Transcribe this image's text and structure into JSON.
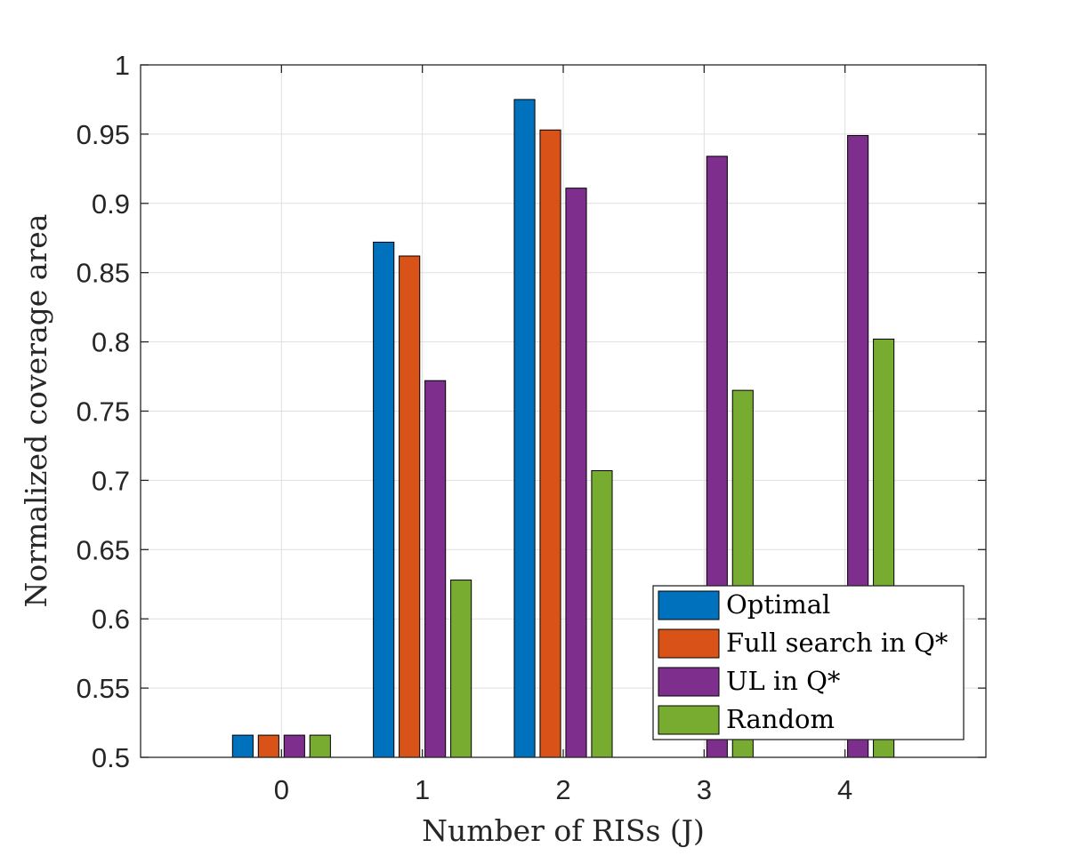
{
  "chart_data": {
    "type": "bar",
    "title": "",
    "xlabel": "Number of RISs (J)",
    "ylabel": "Normalized coverage area",
    "categories": [
      "0",
      "1",
      "2",
      "3",
      "4"
    ],
    "xlim": [
      -1,
      5
    ],
    "ylim": [
      0.5,
      1
    ],
    "yticks": [
      "0.5",
      "0.55",
      "0.6",
      "0.65",
      "0.7",
      "0.75",
      "0.8",
      "0.85",
      "0.9",
      "0.95",
      "1"
    ],
    "grid": true,
    "legend_position": "bottom-right",
    "series": [
      {
        "name": "Optimal",
        "color": "#0072BD",
        "values": [
          0.516,
          0.872,
          0.975,
          null,
          null
        ]
      },
      {
        "name": "Full search in Q*",
        "color": "#D95319",
        "values": [
          0.516,
          0.862,
          0.953,
          null,
          null
        ]
      },
      {
        "name": "UL in Q*",
        "color": "#7E2F8E",
        "values": [
          0.516,
          0.772,
          0.911,
          0.934,
          0.949
        ]
      },
      {
        "name": "Random",
        "color": "#77AC30",
        "values": [
          0.516,
          0.628,
          0.707,
          0.765,
          0.802
        ]
      }
    ]
  }
}
